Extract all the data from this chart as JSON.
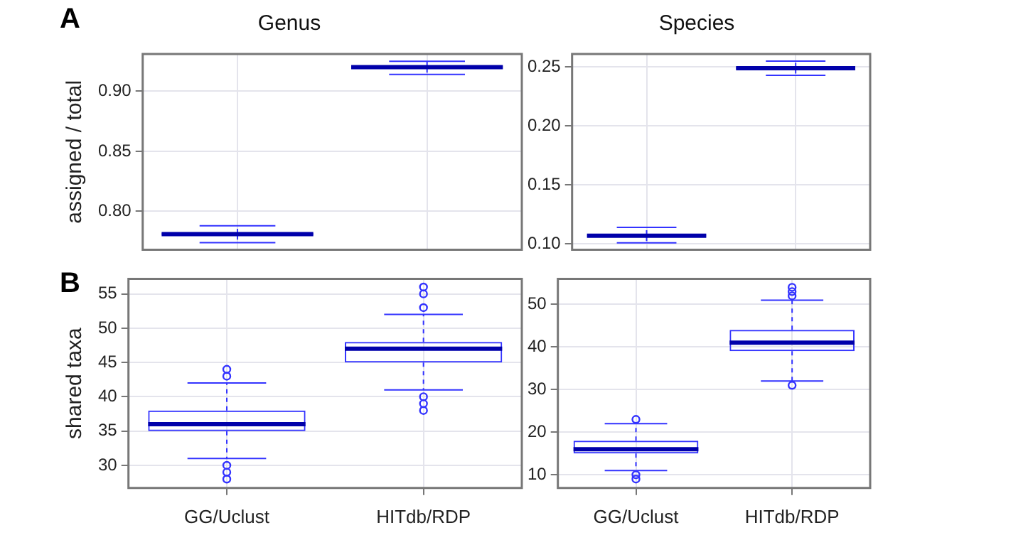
{
  "chart_data": [
    {
      "type": "box",
      "title": "Genus",
      "ylabel": "assigned / total",
      "annotations": [
        "A"
      ],
      "categories": [
        null,
        null
      ],
      "color": "#3333ff",
      "ylim": [
        0.768,
        0.931
      ],
      "yticks": [
        {
          "value": 0.8,
          "label": "0.80"
        },
        {
          "value": 0.85,
          "label": "0.85"
        },
        {
          "value": 0.9,
          "label": "0.90"
        }
      ],
      "grid": true,
      "tick_labels": "y",
      "boxes": [
        {
          "low": 0.774,
          "q1": 0.78,
          "median": 0.781,
          "q3": 0.782,
          "high": 0.788
        },
        {
          "low": 0.914,
          "q1": 0.919,
          "median": 0.92,
          "q3": 0.921,
          "high": 0.925
        }
      ]
    },
    {
      "type": "box",
      "title": "Species",
      "categories": [
        null,
        null
      ],
      "color": "#3333ff",
      "ylim": [
        0.095,
        0.261
      ],
      "yticks": [
        {
          "value": 0.1,
          "label": "0.10"
        },
        {
          "value": 0.15,
          "label": "0.15"
        },
        {
          "value": 0.2,
          "label": "0.20"
        },
        {
          "value": 0.25,
          "label": "0.25"
        }
      ],
      "grid": true,
      "tick_labels": "y",
      "boxes": [
        {
          "low": 0.101,
          "q1": 0.106,
          "median": 0.107,
          "q3": 0.108,
          "high": 0.114
        },
        {
          "low": 0.243,
          "q1": 0.248,
          "median": 0.249,
          "q3": 0.25,
          "high": 0.255
        }
      ]
    },
    {
      "type": "box",
      "ylabel": "shared taxa",
      "annotations": [
        "B"
      ],
      "categories": [
        "GG/Uclust",
        "HITdb/RDP"
      ],
      "color": "#3333ff",
      "ylim": [
        26.7,
        57.2
      ],
      "yticks": [
        30,
        35,
        40,
        45,
        50,
        55
      ],
      "grid": true,
      "boxes": [
        {
          "low": 31,
          "q1": 35,
          "median": 36,
          "q3": 38,
          "high": 42,
          "outliers": [
            28,
            29,
            30,
            43,
            44
          ]
        },
        {
          "low": 41,
          "q1": 45,
          "median": 47,
          "q3": 48,
          "high": 52,
          "outliers": [
            38,
            39,
            40,
            53,
            55,
            56
          ]
        }
      ]
    },
    {
      "type": "box",
      "categories": [
        "GG/Uclust",
        "HITdb/RDP"
      ],
      "color": "#3333ff",
      "ylim": [
        6.9,
        56
      ],
      "yticks": [
        10,
        20,
        30,
        40,
        50
      ],
      "grid": true,
      "boxes": [
        {
          "low": 11,
          "q1": 15,
          "median": 16,
          "q3": 18,
          "high": 22,
          "outliers": [
            9,
            10,
            23
          ]
        },
        {
          "low": 32,
          "q1": 39,
          "median": 41,
          "q3": 44,
          "high": 51,
          "outliers": [
            31,
            52,
            53,
            54
          ]
        }
      ]
    }
  ]
}
